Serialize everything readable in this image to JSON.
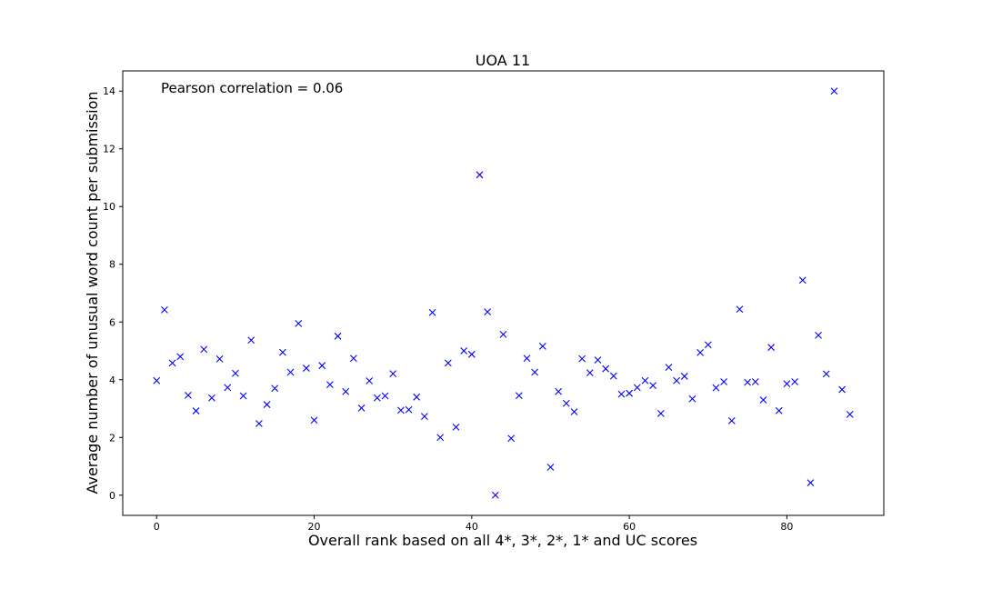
{
  "chart_data": {
    "type": "scatter",
    "title": "UOA 11",
    "xlabel": "Overall rank based on all 4*, 3*, 2*, 1* and UC scores",
    "ylabel": "Average number of unusual word count per submission",
    "annotation": "Pearson correlation = 0.06",
    "xlim": [
      -4.3,
      92.3
    ],
    "ylim": [
      -0.7,
      14.7
    ],
    "xticks": [
      0,
      20,
      40,
      60,
      80
    ],
    "yticks": [
      0,
      2,
      4,
      6,
      8,
      10,
      12,
      14
    ],
    "marker": "x",
    "marker_color": "#0000ff",
    "grid": false,
    "x": [
      0,
      1,
      2,
      3,
      4,
      5,
      6,
      7,
      8,
      9,
      10,
      11,
      12,
      13,
      14,
      15,
      16,
      17,
      18,
      19,
      20,
      21,
      22,
      23,
      24,
      25,
      26,
      27,
      28,
      29,
      30,
      31,
      32,
      33,
      34,
      35,
      36,
      37,
      38,
      39,
      40,
      41,
      42,
      43,
      44,
      45,
      46,
      47,
      48,
      49,
      50,
      51,
      52,
      53,
      54,
      55,
      56,
      57,
      58,
      59,
      60,
      61,
      62,
      63,
      64,
      65,
      66,
      67,
      68,
      69,
      70,
      71,
      72,
      73,
      74,
      75,
      76,
      77,
      78,
      79,
      80,
      81,
      82,
      83,
      84,
      85,
      86,
      87,
      88
    ],
    "y": [
      3.97,
      6.42,
      4.58,
      4.8,
      3.46,
      2.92,
      5.05,
      3.37,
      4.72,
      3.73,
      4.22,
      3.44,
      5.37,
      2.48,
      3.14,
      3.7,
      4.95,
      4.26,
      5.95,
      4.4,
      2.6,
      4.49,
      3.83,
      5.51,
      3.59,
      4.74,
      3.02,
      3.96,
      3.37,
      3.44,
      4.21,
      2.94,
      2.96,
      3.4,
      2.73,
      6.33,
      2.0,
      4.58,
      2.36,
      5.0,
      4.88,
      11.1,
      6.35,
      0.0,
      5.57,
      1.97,
      3.45,
      4.74,
      4.26,
      5.16,
      0.97,
      3.59,
      3.18,
      2.89,
      4.73,
      4.24,
      4.68,
      4.38,
      4.13,
      3.5,
      3.53,
      3.73,
      3.97,
      3.8,
      2.83,
      4.43,
      3.97,
      4.12,
      3.34,
      4.94,
      5.21,
      3.72,
      3.93,
      2.58,
      6.44,
      3.91,
      3.93,
      3.3,
      5.12,
      2.93,
      3.86,
      3.93,
      7.45,
      0.43,
      5.54,
      4.2,
      14.0,
      3.66,
      2.8
    ]
  }
}
